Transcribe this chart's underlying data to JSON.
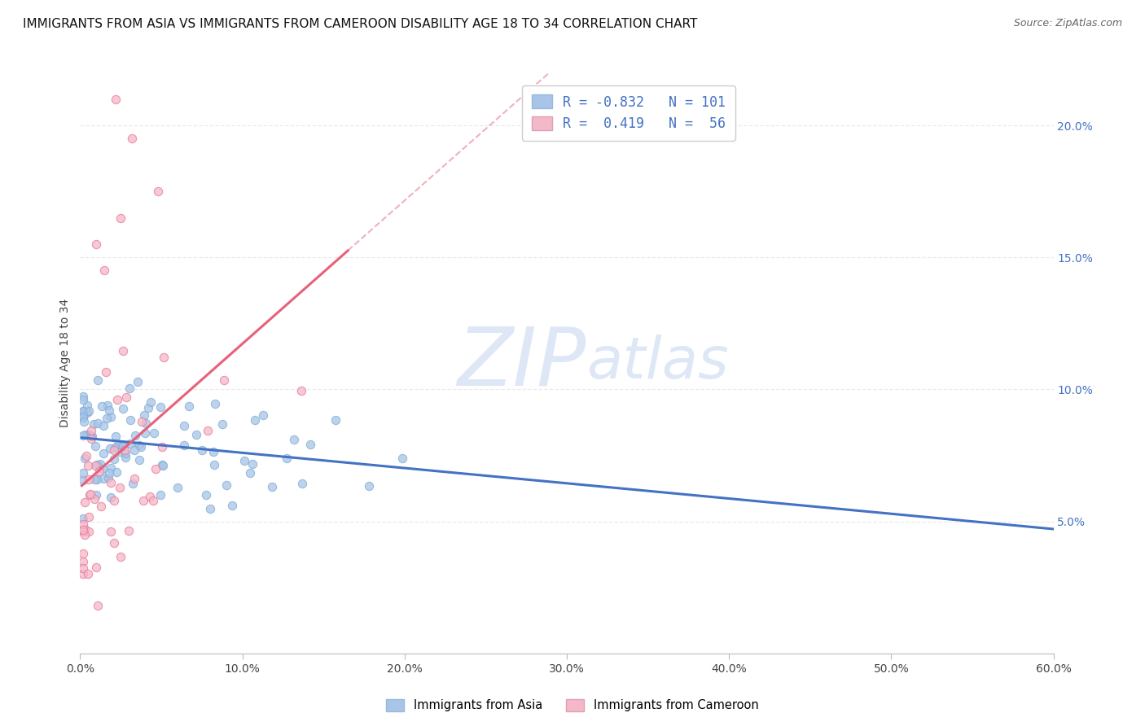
{
  "title": "IMMIGRANTS FROM ASIA VS IMMIGRANTS FROM CAMEROON DISABILITY AGE 18 TO 34 CORRELATION CHART",
  "source": "Source: ZipAtlas.com",
  "ylabel": "Disability Age 18 to 34",
  "watermark_zip": "ZIP",
  "watermark_atlas": "atlas",
  "xlim": [
    0.0,
    0.6
  ],
  "ylim": [
    0.0,
    0.22
  ],
  "xticks": [
    0.0,
    0.1,
    0.2,
    0.3,
    0.4,
    0.5,
    0.6
  ],
  "yticks_right": [
    0.05,
    0.1,
    0.15,
    0.2
  ],
  "asia_color": "#a8c4e8",
  "asia_edge_color": "#7bafd4",
  "cameroon_color": "#f4b8c8",
  "cameroon_edge_color": "#e87898",
  "asia_line_color": "#4472c4",
  "cameroon_line_color": "#e8607a",
  "grid_color": "#e8e8e8",
  "background_color": "#ffffff",
  "title_fontsize": 11,
  "axis_label_fontsize": 10,
  "tick_fontsize": 10,
  "right_tick_color": "#4472c4",
  "watermark_color": "#c8d8f0",
  "legend_box_color_asia": "#a8c4e8",
  "legend_box_color_cam": "#f4b8c8",
  "legend_text_color": "#4472c4",
  "legend_r_asia": "-0.832",
  "legend_n_asia": "101",
  "legend_r_cam": "0.419",
  "legend_n_cam": "56"
}
